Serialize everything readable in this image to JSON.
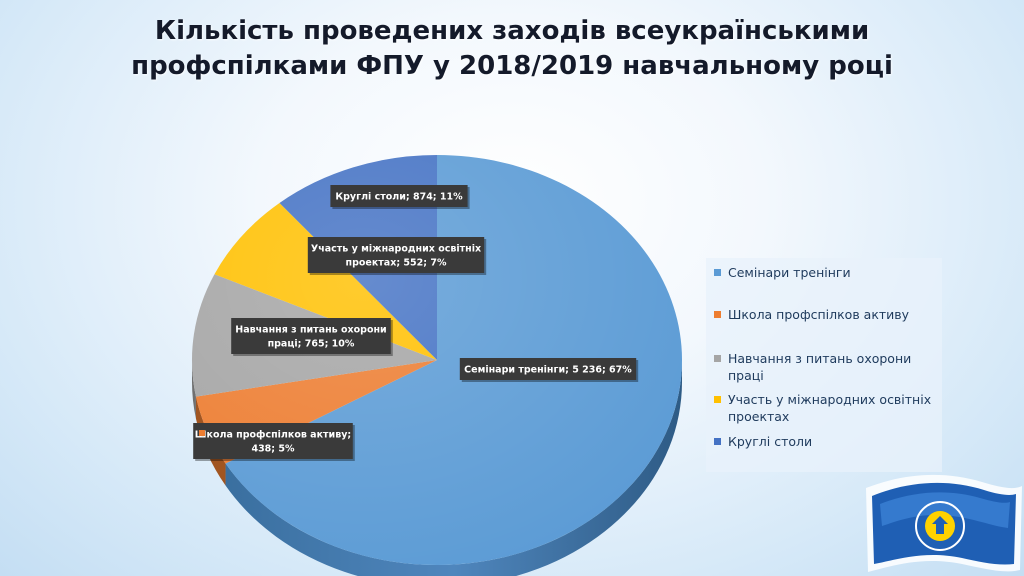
{
  "title_lines": [
    "Кількість проведених заходів всеукраїнськими",
    "профспілками ФПУ у 2018/2019 навчальному році"
  ],
  "colors": {
    "seminars": "#5b9bd5",
    "school": "#ed7d31",
    "safety": "#a5a5a5",
    "intl": "#ffc000",
    "roundtables": "#4472c4"
  },
  "chart_data": {
    "type": "pie",
    "title": "Кількість проведених заходів всеукраїнськими профспілками ФПУ у 2018/2019 навчальному році",
    "legend_position": "right",
    "slices": [
      {
        "key": "seminars",
        "label": "Семінари тренінги",
        "value": 5236,
        "percent": 67,
        "data_label": [
          "Семінари тренінги; 5 236; 67%"
        ]
      },
      {
        "key": "school",
        "label": "Школа профспілков активу",
        "value": 438,
        "percent": 5,
        "data_label": [
          "Школа профспілков  активу;",
          "438; 5%"
        ]
      },
      {
        "key": "safety",
        "label": "Навчання з питань охорони праці",
        "value": 765,
        "percent": 10,
        "data_label": [
          "Навчання  з питань охорони",
          "праці; 765; 10%"
        ]
      },
      {
        "key": "intl",
        "label": "Участь у міжнародних освітніх проектах",
        "value": 552,
        "percent": 7,
        "data_label": [
          "Участь у міжнародних освітніх",
          "проектах; 552; 7%"
        ]
      },
      {
        "key": "roundtables",
        "label": "Круглі столи",
        "value": 874,
        "percent": 11,
        "data_label": [
          "Круглі столи; 874; 11%"
        ]
      }
    ]
  },
  "legend": [
    {
      "key": "seminars",
      "lines": [
        "Семінари тренінги"
      ]
    },
    {
      "key": "school",
      "lines": [
        "Школа профспілков активу"
      ]
    },
    {
      "key": "safety",
      "lines": [
        "Навчання з питань охорони праці"
      ]
    },
    {
      "key": "intl",
      "lines": [
        "Участь у міжнародних освітніх",
        "проектах"
      ]
    },
    {
      "key": "roundtables",
      "lines": [
        "Круглі столи"
      ]
    }
  ]
}
